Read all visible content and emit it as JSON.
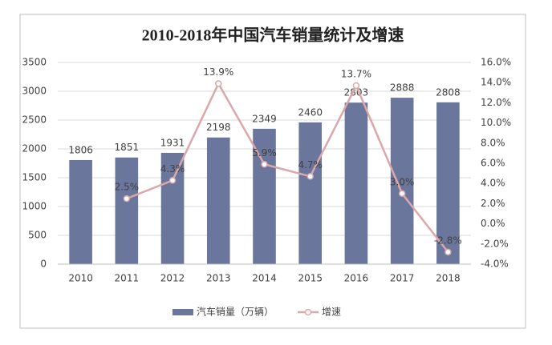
{
  "chart_data": {
    "type": "combo",
    "title": "2010-2018年中国汽车销量统计及增速",
    "categories": [
      "2010",
      "2011",
      "2012",
      "2013",
      "2014",
      "2015",
      "2016",
      "2017",
      "2018"
    ],
    "series": [
      {
        "name": "汽车销量（万辆）",
        "type": "bar",
        "color": "#6b769c",
        "values": [
          1806,
          1851,
          1931,
          2198,
          2349,
          2460,
          2803,
          2888,
          2808
        ]
      },
      {
        "name": "增速",
        "type": "line",
        "axis": "y2",
        "color": "#dba7aa",
        "values": [
          null,
          2.5,
          4.3,
          13.9,
          5.9,
          4.7,
          13.7,
          3.0,
          -2.8
        ],
        "value_labels": [
          null,
          "2.5%",
          "4.3%",
          "13.9%",
          "5.9%",
          "4.7%",
          "13.7%",
          "3.0%",
          "-2.8%"
        ]
      }
    ],
    "ylim": [
      0,
      3500
    ],
    "yticks": [
      0,
      500,
      1000,
      1500,
      2000,
      2500,
      3000,
      3500
    ],
    "y2lim": [
      -4,
      16
    ],
    "y2ticks": [
      {
        "value": -4,
        "label": "-4.0%"
      },
      {
        "value": -2,
        "label": "-2.0%"
      },
      {
        "value": 0,
        "label": "0.0%"
      },
      {
        "value": 2,
        "label": "2.0%"
      },
      {
        "value": 4,
        "label": "4.0%"
      },
      {
        "value": 6,
        "label": "6.0%"
      },
      {
        "value": 8,
        "label": "8.0%"
      },
      {
        "value": 10,
        "label": "10.0%"
      },
      {
        "value": 12,
        "label": "12.0%"
      },
      {
        "value": 14,
        "label": "14.0%"
      },
      {
        "value": 16,
        "label": "16.0%"
      }
    ],
    "grid": true,
    "legend": "bottom"
  }
}
